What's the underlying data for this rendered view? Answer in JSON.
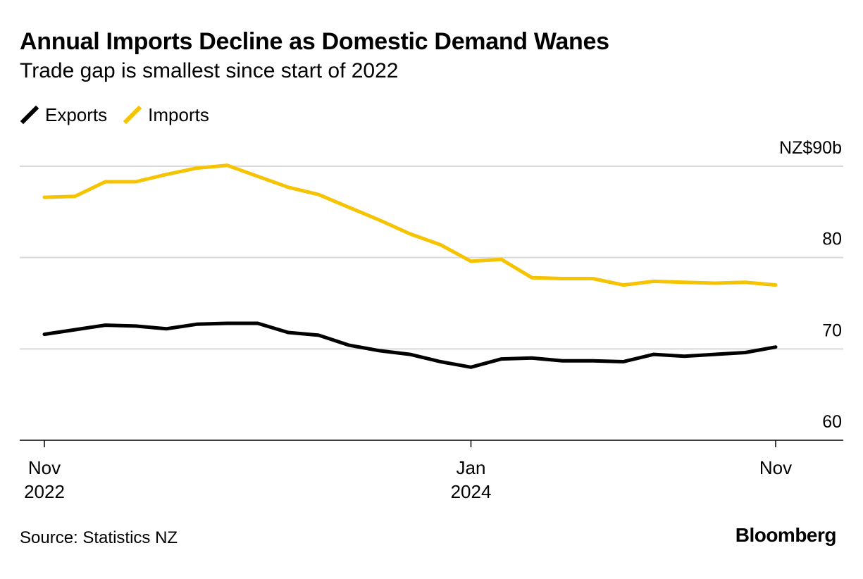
{
  "chart_data": {
    "type": "line",
    "title": "Annual Imports Decline as Domestic Demand Wanes",
    "subtitle": "Trade gap is smallest since start of 2022",
    "x": [
      "2022-11",
      "2022-12",
      "2023-01",
      "2023-02",
      "2023-03",
      "2023-04",
      "2023-05",
      "2023-06",
      "2023-07",
      "2023-08",
      "2023-09",
      "2023-10",
      "2023-11",
      "2023-12",
      "2024-01",
      "2024-02",
      "2024-03",
      "2024-04",
      "2024-05",
      "2024-06",
      "2024-07",
      "2024-08",
      "2024-09",
      "2024-10",
      "2024-11"
    ],
    "series": [
      {
        "name": "Exports",
        "color": "#000000",
        "values": [
          71.6,
          72.1,
          72.6,
          72.5,
          72.2,
          72.7,
          72.8,
          72.8,
          71.8,
          71.5,
          70.4,
          69.8,
          69.4,
          68.6,
          68.0,
          68.9,
          69.0,
          68.7,
          68.7,
          68.6,
          69.4,
          69.2,
          69.4,
          69.6,
          70.2
        ]
      },
      {
        "name": "Imports",
        "color": "#f5c300",
        "values": [
          86.6,
          86.7,
          88.3,
          88.3,
          89.1,
          89.8,
          90.1,
          88.9,
          87.7,
          86.9,
          85.5,
          84.1,
          82.6,
          81.4,
          79.6,
          79.8,
          77.8,
          77.7,
          77.7,
          77.0,
          77.4,
          77.3,
          77.2,
          77.3,
          77.0
        ]
      }
    ],
    "ylim": [
      60,
      90
    ],
    "yticks": [
      60,
      70,
      80,
      90
    ],
    "ytick_labels": [
      "60",
      "70",
      "80",
      "NZ$90b"
    ],
    "xticks": [
      {
        "index": 0,
        "line1": "Nov",
        "line2": "2022"
      },
      {
        "index": 14,
        "line1": "Jan",
        "line2": "2024"
      },
      {
        "index": 24,
        "line1": "Nov",
        "line2": ""
      }
    ],
    "legend": [
      {
        "label": "Exports",
        "color": "#000000"
      },
      {
        "label": "Imports",
        "color": "#f5c300"
      }
    ],
    "legend_position": "top-left",
    "grid": true,
    "xlabel": "",
    "ylabel": ""
  },
  "footer": {
    "source": "Source: Statistics NZ",
    "brand": "Bloomberg"
  }
}
